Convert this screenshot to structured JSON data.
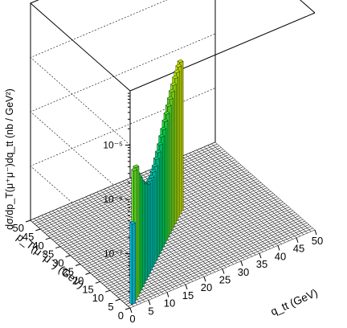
{
  "chart_data": {
    "type": "lego3d",
    "title": "",
    "ylabel": "dσ/dp_T(μ⁺μ⁻)dq_tt (nb / GeV²)",
    "xlabel": "q_tt (GeV)",
    "depth_label": "p_T(μ⁺μ⁻) (GeV)",
    "zscale": "log",
    "zrange": [
      1e-08,
      0.0001
    ],
    "z_tick_labels": [
      "10⁻⁷",
      "10⁻⁶",
      "10⁻⁵"
    ],
    "z_tick_values": [
      1e-07,
      1e-06,
      1e-05
    ],
    "x_ticks": [
      "0",
      "5",
      "10",
      "15",
      "20",
      "25",
      "30",
      "35",
      "40",
      "45",
      "50"
    ],
    "y_ticks": [
      "0",
      "5",
      "10",
      "15",
      "20",
      "25",
      "30",
      "35",
      "40",
      "45",
      "50"
    ],
    "xrange": [
      0,
      50
    ],
    "yrange": [
      0,
      50
    ],
    "grid": true,
    "cells": [
      {
        "qtt": 1.5,
        "pt": 1.5,
        "value": 3e-07
      },
      {
        "qtt": 2.5,
        "pt": 2.5,
        "value": 2.5e-06
      },
      {
        "qtt": 3.5,
        "pt": 3.5,
        "value": 2.5e-06
      },
      {
        "qtt": 4.5,
        "pt": 4.5,
        "value": 1.6e-06
      },
      {
        "qtt": 5.5,
        "pt": 5.5,
        "value": 1.2e-06
      },
      {
        "qtt": 6.5,
        "pt": 6.5,
        "value": 9e-07
      },
      {
        "qtt": 7.5,
        "pt": 7.5,
        "value": 7e-07
      },
      {
        "qtt": 8.5,
        "pt": 8.5,
        "value": 6e-07
      },
      {
        "qtt": 9.5,
        "pt": 9.5,
        "value": 5e-07
      },
      {
        "qtt": 10.5,
        "pt": 10.5,
        "value": 4.5e-07
      },
      {
        "qtt": 11.5,
        "pt": 11.5,
        "value": 4.5e-07
      },
      {
        "qtt": 12.5,
        "pt": 12.5,
        "value": 4.5e-07
      },
      {
        "qtt": 13.5,
        "pt": 13.5,
        "value": 5e-07
      },
      {
        "qtt": 14.5,
        "pt": 14.5,
        "value": 5.5e-07
      },
      {
        "qtt": 15.5,
        "pt": 15.5,
        "value": 6.5e-07
      },
      {
        "qtt": 16.5,
        "pt": 16.5,
        "value": 7.5e-07
      },
      {
        "qtt": 17.5,
        "pt": 17.5,
        "value": 9e-07
      },
      {
        "qtt": 18.5,
        "pt": 18.5,
        "value": 1.1e-06
      },
      {
        "qtt": 19.5,
        "pt": 19.5,
        "value": 1.3e-06
      },
      {
        "qtt": 20.5,
        "pt": 20.5,
        "value": 1.6e-06
      },
      {
        "qtt": 21.5,
        "pt": 21.5,
        "value": 1.9e-06
      },
      {
        "qtt": 22.5,
        "pt": 22.5,
        "value": 2.3e-06
      },
      {
        "qtt": 23.5,
        "pt": 23.5,
        "value": 2.7e-06
      },
      {
        "qtt": 24.5,
        "pt": 24.5,
        "value": 3.2e-06
      },
      {
        "qtt": 25.5,
        "pt": 25.5,
        "value": 3.7e-06
      },
      {
        "qtt": 26.5,
        "pt": 26.5,
        "value": 4.3e-06
      },
      {
        "qtt": 27.5,
        "pt": 27.5,
        "value": 4.8e-06
      },
      {
        "qtt": 28.5,
        "pt": 28.5,
        "value": 5.3e-06
      },
      {
        "qtt": 29.5,
        "pt": 29.5,
        "value": 5.6e-06
      }
    ]
  }
}
